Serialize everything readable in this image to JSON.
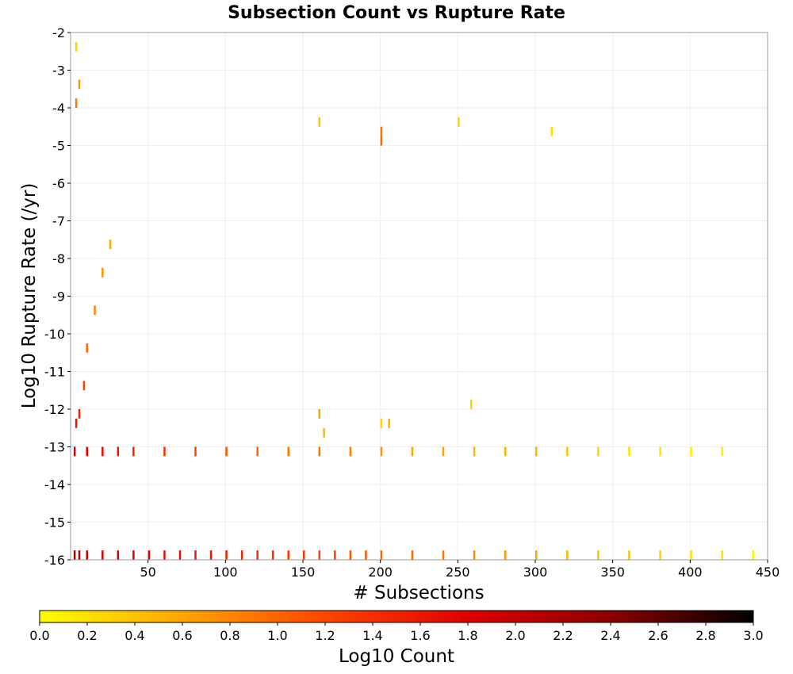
{
  "chart_data": {
    "type": "heatmap",
    "title": "Subsection Count vs Rupture Rate",
    "xlabel": "# Subsections",
    "ylabel": "Log10 Rupture Rate (/yr)",
    "xlim": [
      0,
      450
    ],
    "ylim": [
      -16,
      -2
    ],
    "x_ticks": [
      50,
      100,
      150,
      200,
      250,
      300,
      350,
      400,
      450
    ],
    "y_ticks": [
      -2,
      -3,
      -4,
      -5,
      -6,
      -7,
      -8,
      -9,
      -10,
      -11,
      -12,
      -13,
      -14,
      -15,
      -16
    ],
    "grid": true,
    "bin_width_x": 1,
    "bin_height_y": 0.25,
    "colorbar": {
      "label": "Log10 Count",
      "range": [
        0.0,
        3.0
      ],
      "ticks": [
        "0.0",
        "0.2",
        "0.4",
        "0.6",
        "0.8",
        "1.0",
        "1.2",
        "1.4",
        "1.6",
        "1.8",
        "2.0",
        "2.2",
        "2.4",
        "2.6",
        "2.8",
        "3.0"
      ],
      "colors": [
        "#ffff00",
        "#ffa500",
        "#ff4500",
        "#e00000",
        "#8b0000",
        "#000000"
      ]
    },
    "cells": [
      [
        2,
        -16,
        2.2
      ],
      [
        5,
        -16,
        2.1
      ],
      [
        10,
        -16,
        2.0
      ],
      [
        20,
        -16,
        1.9
      ],
      [
        30,
        -16,
        1.9
      ],
      [
        40,
        -16,
        1.8
      ],
      [
        50,
        -16,
        1.8
      ],
      [
        60,
        -16,
        1.7
      ],
      [
        70,
        -16,
        1.7
      ],
      [
        80,
        -16,
        1.6
      ],
      [
        90,
        -16,
        1.6
      ],
      [
        100,
        -16,
        1.5
      ],
      [
        110,
        -16,
        1.5
      ],
      [
        120,
        -16,
        1.4
      ],
      [
        130,
        -16,
        1.4
      ],
      [
        140,
        -16,
        1.3
      ],
      [
        150,
        -16,
        1.3
      ],
      [
        160,
        -16,
        1.2
      ],
      [
        170,
        -16,
        1.2
      ],
      [
        180,
        -16,
        1.1
      ],
      [
        190,
        -16,
        1.1
      ],
      [
        200,
        -16,
        1.0
      ],
      [
        220,
        -16,
        1.0
      ],
      [
        240,
        -16,
        0.9
      ],
      [
        260,
        -16,
        0.8
      ],
      [
        280,
        -16,
        0.7
      ],
      [
        300,
        -16,
        0.6
      ],
      [
        320,
        -16,
        0.5
      ],
      [
        340,
        -16,
        0.4
      ],
      [
        360,
        -16,
        0.4
      ],
      [
        380,
        -16,
        0.3
      ],
      [
        400,
        -16,
        0.2
      ],
      [
        420,
        -16,
        0.2
      ],
      [
        440,
        -16,
        0.1
      ],
      [
        2,
        -13.25,
        1.9
      ],
      [
        10,
        -13.25,
        1.8
      ],
      [
        20,
        -13.25,
        1.7
      ],
      [
        30,
        -13.25,
        1.6
      ],
      [
        40,
        -13.25,
        1.5
      ],
      [
        60,
        -13.25,
        1.4
      ],
      [
        80,
        -13.25,
        1.2
      ],
      [
        100,
        -13.25,
        1.1
      ],
      [
        120,
        -13.25,
        1.0
      ],
      [
        140,
        -13.25,
        0.9
      ],
      [
        160,
        -13.25,
        0.9
      ],
      [
        180,
        -13.25,
        0.8
      ],
      [
        200,
        -13.25,
        0.7
      ],
      [
        220,
        -13.25,
        0.6
      ],
      [
        240,
        -13.25,
        0.6
      ],
      [
        260,
        -13.25,
        0.5
      ],
      [
        280,
        -13.25,
        0.5
      ],
      [
        300,
        -13.25,
        0.5
      ],
      [
        320,
        -13.25,
        0.4
      ],
      [
        340,
        -13.25,
        0.3
      ],
      [
        360,
        -13.25,
        0.2
      ],
      [
        380,
        -13.25,
        0.2
      ],
      [
        400,
        -13.25,
        0.1
      ],
      [
        420,
        -13.25,
        0.1
      ],
      [
        3,
        -12.5,
        1.6
      ],
      [
        5,
        -12.25,
        1.5
      ],
      [
        8,
        -11.5,
        1.2
      ],
      [
        10,
        -10.5,
        1.0
      ],
      [
        15,
        -9.5,
        0.8
      ],
      [
        20,
        -8.5,
        0.7
      ],
      [
        25,
        -7.75,
        0.6
      ],
      [
        3,
        -4,
        0.9
      ],
      [
        5,
        -3.5,
        0.7
      ],
      [
        3,
        -2.5,
        0.3
      ],
      [
        160,
        -12.25,
        0.6
      ],
      [
        163,
        -12.75,
        0.5
      ],
      [
        200,
        -4.75,
        0.9
      ],
      [
        200,
        -5,
        1.0
      ],
      [
        250,
        -4.5,
        0.3
      ],
      [
        160,
        -4.5,
        0.4
      ],
      [
        310,
        -4.75,
        0.2
      ],
      [
        200,
        -12.5,
        0.3
      ],
      [
        258,
        -12,
        0.3
      ],
      [
        205,
        -12.5,
        0.5
      ]
    ]
  }
}
